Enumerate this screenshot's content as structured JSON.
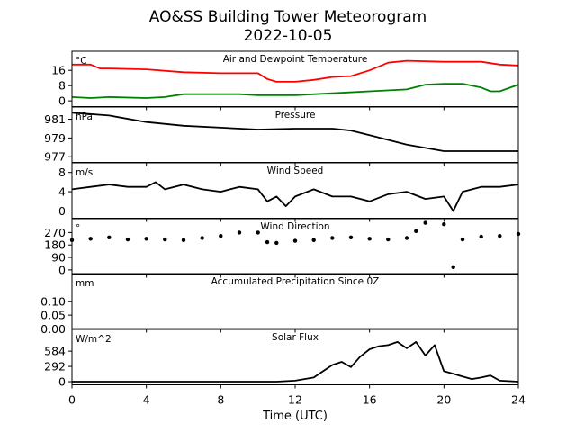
{
  "figure": {
    "title_line1": "AO&SS Building Tower Meteorogram",
    "title_line2": "2022-10-05",
    "xlabel": "Time (UTC)"
  },
  "x_axis": {
    "min": 0,
    "max": 24,
    "ticks": [
      0,
      4,
      8,
      12,
      16,
      20,
      24
    ],
    "tick_labels": [
      "0",
      "4",
      "8",
      "12",
      "16",
      "20",
      "24"
    ]
  },
  "chart_data": [
    {
      "type": "line",
      "title": "Air and Dewpoint Temperature",
      "unit_label": "°C",
      "ylim": [
        -3,
        26
      ],
      "yticks": [
        0,
        8,
        16
      ],
      "ytick_labels": [
        "0",
        "8",
        "16"
      ],
      "series": [
        {
          "color": "#ff0000",
          "x": [
            0,
            1,
            1.5,
            2,
            4,
            6,
            8,
            9,
            10,
            10.5,
            11,
            12,
            13,
            14,
            15,
            16,
            17,
            18,
            20,
            22,
            23,
            24
          ],
          "y": [
            19,
            19,
            17,
            17,
            16.5,
            15,
            14.5,
            14.5,
            14.5,
            11.5,
            10,
            10,
            11,
            12.5,
            13,
            16,
            20,
            21,
            20.5,
            20.5,
            19,
            18.5
          ]
        },
        {
          "color": "#008000",
          "x": [
            0,
            1,
            2,
            4,
            5,
            6,
            9,
            10,
            11,
            12,
            14,
            16,
            18,
            19,
            20,
            21,
            22,
            22.5,
            23,
            24
          ],
          "y": [
            2,
            1.5,
            2,
            1.5,
            2,
            3.5,
            3.5,
            3,
            3,
            3,
            4,
            5,
            6,
            8.5,
            9,
            9,
            7,
            5,
            5,
            8.5
          ]
        }
      ]
    },
    {
      "type": "line",
      "title": "Pressure",
      "unit_label": "hPa",
      "ylim": [
        976.4,
        982.3
      ],
      "yticks": [
        977,
        979,
        981
      ],
      "ytick_labels": [
        "977",
        "979",
        "981"
      ],
      "series": [
        {
          "color": "#000000",
          "x": [
            0,
            2,
            4,
            6,
            8,
            10,
            12,
            14,
            15,
            16,
            18,
            20,
            22,
            24
          ],
          "y": [
            981.7,
            981.4,
            980.7,
            980.3,
            980.1,
            979.9,
            980.0,
            980.0,
            979.8,
            979.3,
            978.3,
            977.6,
            977.6,
            977.6
          ]
        }
      ]
    },
    {
      "type": "line",
      "title": "Wind Speed",
      "unit_label": "m/s",
      "ylim": [
        -1.5,
        10
      ],
      "yticks": [
        0,
        4,
        8
      ],
      "ytick_labels": [
        "0",
        "4",
        "8"
      ],
      "series": [
        {
          "color": "#000000",
          "x": [
            0,
            1,
            2,
            3,
            4,
            4.5,
            5,
            6,
            7,
            8,
            9,
            10,
            10.5,
            11,
            11.5,
            12,
            13,
            14,
            15,
            16,
            17,
            18,
            19,
            20,
            20.5,
            21,
            22,
            23,
            24
          ],
          "y": [
            4.5,
            5,
            5.5,
            5,
            5,
            6,
            4.5,
            5.5,
            4.5,
            4,
            5,
            4.5,
            2,
            3,
            1,
            3,
            4.5,
            3,
            3,
            2,
            3.5,
            4,
            2.5,
            3,
            0,
            4,
            5,
            5,
            5.5
          ]
        }
      ]
    },
    {
      "type": "scatter",
      "title": "Wind Direction",
      "unit_label": "°",
      "ylim": [
        -30,
        370
      ],
      "yticks": [
        0,
        90,
        180,
        270
      ],
      "ytick_labels": [
        "0",
        "90",
        "180",
        "270"
      ],
      "series": [
        {
          "color": "#000000",
          "x": [
            0,
            1,
            2,
            3,
            4,
            5,
            6,
            7,
            8,
            9,
            10,
            10.5,
            11,
            12,
            13,
            14,
            15,
            16,
            17,
            18,
            18.5,
            19,
            20,
            20.5,
            21,
            22,
            23,
            24
          ],
          "y": [
            215,
            225,
            235,
            220,
            225,
            220,
            215,
            230,
            245,
            270,
            270,
            200,
            195,
            210,
            215,
            230,
            235,
            225,
            220,
            230,
            280,
            340,
            330,
            20,
            220,
            240,
            245,
            260
          ]
        }
      ]
    },
    {
      "type": "line",
      "title": "Accumulated Precipitation Since 0Z",
      "unit_label": "mm",
      "ylim": [
        0,
        0.2
      ],
      "yticks": [
        0.0,
        0.05,
        0.1
      ],
      "ytick_labels": [
        "0.00",
        "0.05",
        "0.10"
      ],
      "series": [
        {
          "color": "#000000",
          "x": [
            0,
            24
          ],
          "y": [
            0,
            0
          ]
        }
      ]
    },
    {
      "type": "line",
      "title": "Solar Flux",
      "unit_label": "W/m^2",
      "ylim": [
        -60,
        1000
      ],
      "yticks": [
        0,
        292,
        584
      ],
      "ytick_labels": [
        "0",
        "292",
        "584"
      ],
      "series": [
        {
          "color": "#000000",
          "x": [
            0,
            11,
            12,
            13,
            13.5,
            14,
            14.5,
            15,
            15.5,
            16,
            16.5,
            17,
            17.5,
            18,
            18.5,
            19,
            19.5,
            20,
            20.5,
            21,
            21.5,
            22,
            22.5,
            23,
            24
          ],
          "y": [
            0,
            0,
            20,
            80,
            200,
            320,
            380,
            280,
            480,
            620,
            680,
            700,
            760,
            640,
            760,
            500,
            700,
            200,
            150,
            100,
            50,
            80,
            120,
            20,
            0
          ]
        }
      ]
    }
  ]
}
